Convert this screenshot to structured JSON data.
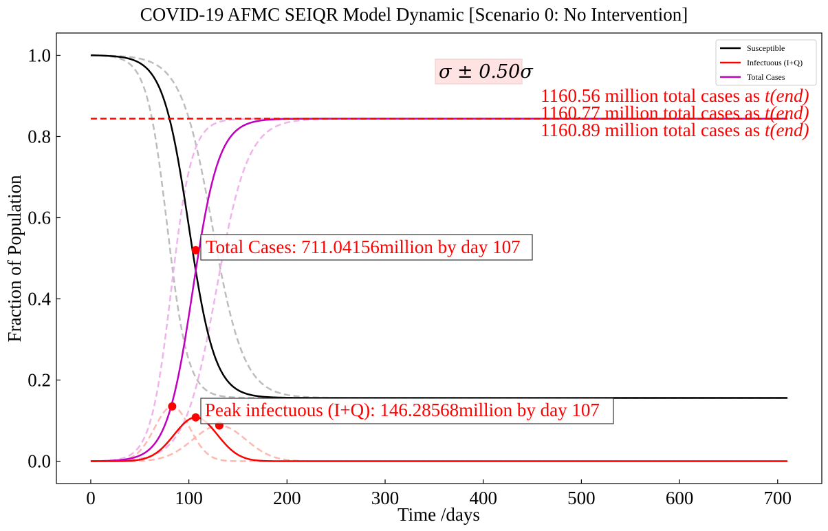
{
  "chart_data": {
    "type": "line",
    "title": "COVID-19 AFMC SEIQR Model Dynamic [Scenario 0: No Intervention]",
    "xlabel": "Time /days",
    "ylabel": "Fraction of Population",
    "xlim": [
      -35,
      745
    ],
    "ylim": [
      -0.055,
      1.055
    ],
    "xticks": [
      0,
      100,
      200,
      300,
      400,
      500,
      600,
      700
    ],
    "yticks": [
      0.0,
      0.2,
      0.4,
      0.6,
      0.8,
      1.0
    ],
    "xtick_labels": [
      "0",
      "100",
      "200",
      "300",
      "400",
      "500",
      "600",
      "700"
    ],
    "ytick_labels": [
      "0.0",
      "0.2",
      "0.4",
      "0.6",
      "0.8",
      "1.0"
    ],
    "legend_position": "top-right",
    "legend": [
      {
        "label": "Susceptible",
        "color": "#000000"
      },
      {
        "label": "Infectuous (I+Q)",
        "color": "#ff0000"
      },
      {
        "label": "Total Cases",
        "color": "#bf00bf"
      }
    ],
    "series": [
      {
        "name": "Susceptible",
        "kind": "sigmoid",
        "x0": 100,
        "k": 0.075,
        "y_start": 1.0,
        "y_end": 0.156,
        "color": "#000000",
        "style": "solid"
      },
      {
        "name": "Susceptible (low)",
        "kind": "sigmoid",
        "x0": 78,
        "k": 0.095,
        "y_start": 1.0,
        "y_end": 0.156,
        "color": "#bdbdbd",
        "style": "dashed"
      },
      {
        "name": "Susceptible (high)",
        "kind": "sigmoid",
        "x0": 124,
        "k": 0.062,
        "y_start": 1.0,
        "y_end": 0.156,
        "color": "#bdbdbd",
        "style": "dashed"
      },
      {
        "name": "Total Cases",
        "kind": "sigmoid",
        "x0": 104,
        "k": 0.075,
        "y_start": 0.0,
        "y_end": 0.844,
        "color": "#bf00bf",
        "style": "solid"
      },
      {
        "name": "Total Cases (low)",
        "kind": "sigmoid",
        "x0": 82,
        "k": 0.095,
        "y_start": 0.0,
        "y_end": 0.844,
        "color": "#f0b4ec",
        "style": "dashed"
      },
      {
        "name": "Total Cases (high)",
        "kind": "sigmoid",
        "x0": 128,
        "k": 0.062,
        "y_start": 0.0,
        "y_end": 0.844,
        "color": "#f0b4ec",
        "style": "dashed"
      },
      {
        "name": "Infectuous (I+Q)",
        "kind": "gaussian",
        "peak_x": 107,
        "peak_y": 0.108,
        "sigma": 22,
        "color": "#ff0000",
        "style": "solid"
      },
      {
        "name": "Infectuous (low)",
        "kind": "gaussian",
        "peak_x": 83,
        "peak_y": 0.135,
        "sigma": 18,
        "color": "#ffb8b0",
        "style": "dashed"
      },
      {
        "name": "Infectuous (high)",
        "kind": "gaussian",
        "peak_x": 131,
        "peak_y": 0.088,
        "sigma": 27,
        "color": "#ffb8b0",
        "style": "dashed"
      }
    ],
    "hline": {
      "y": 0.844,
      "x_from": 0,
      "x_to": 710,
      "color": "#ff0000",
      "style": "dashed"
    },
    "markers": [
      {
        "x": 107,
        "y": 0.52,
        "color": "#ff0000"
      },
      {
        "x": 83,
        "y": 0.135,
        "color": "#ff0000"
      },
      {
        "x": 107,
        "y": 0.108,
        "color": "#ff0000"
      },
      {
        "x": 131,
        "y": 0.088,
        "color": "#ff0000"
      }
    ],
    "annotations": {
      "total_cases": "Total Cases: 711.04156million by day 107",
      "peak": "Peak infectuous (I+Q): 146.28568million by day 107",
      "sigma_prefix": "σ ± 0.50",
      "sigma_suffix": "σ",
      "end_cases": [
        {
          "value": "1160.56 million total cases as ",
          "t": "t",
          "paren": "(end)"
        },
        {
          "value": "1160.77 million total cases as ",
          "t": "t",
          "paren": "(end)"
        },
        {
          "value": "1160.89 million total cases as ",
          "t": "t",
          "paren": "(end)"
        }
      ]
    },
    "x_end": 710
  }
}
